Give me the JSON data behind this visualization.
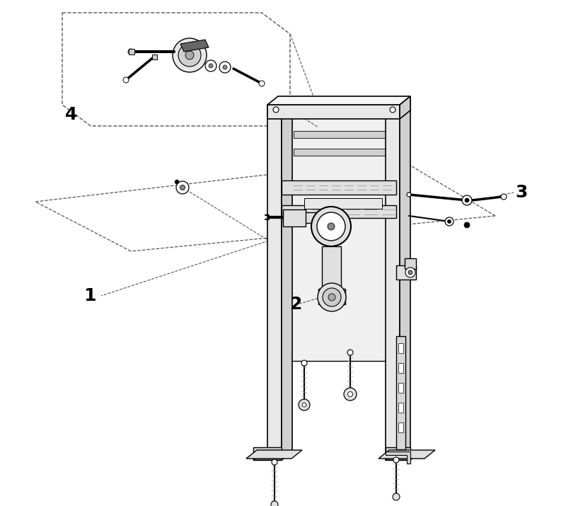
{
  "background_color": "#ffffff",
  "line_color": "#000000",
  "dashed_color": "#555555",
  "mid_gray": "#999999",
  "label_1": "1",
  "label_2": "2",
  "label_3": "3",
  "label_4": "4",
  "label_fontsize": 18,
  "figsize": [
    8.0,
    7.15
  ]
}
